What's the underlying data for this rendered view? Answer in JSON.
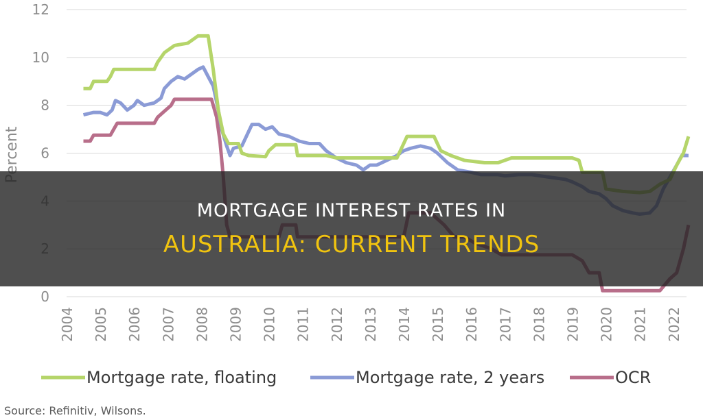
{
  "chart_data": {
    "type": "line",
    "ylabel": "Percent",
    "ylim": [
      0,
      12
    ],
    "yticks": [
      "0",
      "2",
      "4",
      "6",
      "8",
      "10",
      "12"
    ],
    "xlim": [
      2004,
      2022.6
    ],
    "xticks": [
      "2004",
      "2005",
      "2006",
      "2007",
      "2008",
      "2009",
      "2010",
      "2011",
      "2012",
      "2013",
      "2014",
      "2015",
      "2016",
      "2017",
      "2018",
      "2019",
      "2020",
      "2021",
      "2022"
    ],
    "grid": "horizontal",
    "legend_position": "bottom",
    "series": [
      {
        "name": "Mortgage rate, floating",
        "color": "#b5d56a",
        "points": [
          [
            2004.5,
            8.7
          ],
          [
            2004.7,
            8.7
          ],
          [
            2004.8,
            9.0
          ],
          [
            2005.2,
            9.0
          ],
          [
            2005.3,
            9.2
          ],
          [
            2005.4,
            9.5
          ],
          [
            2006.6,
            9.5
          ],
          [
            2006.7,
            9.8
          ],
          [
            2006.9,
            10.2
          ],
          [
            2007.2,
            10.5
          ],
          [
            2007.6,
            10.6
          ],
          [
            2007.7,
            10.7
          ],
          [
            2007.9,
            10.9
          ],
          [
            2008.2,
            10.9
          ],
          [
            2008.35,
            9.5
          ],
          [
            2008.5,
            7.8
          ],
          [
            2008.65,
            6.8
          ],
          [
            2008.8,
            6.4
          ],
          [
            2009.1,
            6.4
          ],
          [
            2009.2,
            6.0
          ],
          [
            2009.4,
            5.9
          ],
          [
            2009.9,
            5.85
          ],
          [
            2010.0,
            6.1
          ],
          [
            2010.2,
            6.35
          ],
          [
            2010.8,
            6.35
          ],
          [
            2010.85,
            5.9
          ],
          [
            2011.7,
            5.9
          ],
          [
            2012.0,
            5.8
          ],
          [
            2013.8,
            5.8
          ],
          [
            2014.1,
            6.7
          ],
          [
            2014.9,
            6.7
          ],
          [
            2015.1,
            6.1
          ],
          [
            2015.4,
            5.9
          ],
          [
            2015.8,
            5.7
          ],
          [
            2016.4,
            5.6
          ],
          [
            2016.8,
            5.6
          ],
          [
            2017.2,
            5.8
          ],
          [
            2018.8,
            5.8
          ],
          [
            2019.0,
            5.8
          ],
          [
            2019.2,
            5.7
          ],
          [
            2019.3,
            5.2
          ],
          [
            2019.9,
            5.2
          ],
          [
            2020.0,
            4.5
          ],
          [
            2020.5,
            4.4
          ],
          [
            2021.0,
            4.35
          ],
          [
            2021.3,
            4.4
          ],
          [
            2021.6,
            4.7
          ],
          [
            2021.9,
            4.9
          ],
          [
            2022.1,
            5.5
          ],
          [
            2022.3,
            6.0
          ],
          [
            2022.45,
            6.7
          ]
        ]
      },
      {
        "name": "Mortgage rate, 2 years",
        "color": "#8b9bd6",
        "points": [
          [
            2004.5,
            7.6
          ],
          [
            2004.8,
            7.7
          ],
          [
            2005.0,
            7.7
          ],
          [
            2005.2,
            7.6
          ],
          [
            2005.35,
            7.8
          ],
          [
            2005.45,
            8.2
          ],
          [
            2005.6,
            8.1
          ],
          [
            2005.8,
            7.8
          ],
          [
            2006.0,
            8.0
          ],
          [
            2006.1,
            8.2
          ],
          [
            2006.3,
            8.0
          ],
          [
            2006.6,
            8.1
          ],
          [
            2006.8,
            8.3
          ],
          [
            2006.9,
            8.7
          ],
          [
            2007.1,
            9.0
          ],
          [
            2007.3,
            9.2
          ],
          [
            2007.5,
            9.1
          ],
          [
            2007.7,
            9.3
          ],
          [
            2007.9,
            9.5
          ],
          [
            2008.05,
            9.6
          ],
          [
            2008.2,
            9.2
          ],
          [
            2008.35,
            8.8
          ],
          [
            2008.5,
            7.8
          ],
          [
            2008.6,
            7.0
          ],
          [
            2008.75,
            6.3
          ],
          [
            2008.85,
            5.9
          ],
          [
            2008.95,
            6.2
          ],
          [
            2009.2,
            6.3
          ],
          [
            2009.4,
            6.9
          ],
          [
            2009.5,
            7.2
          ],
          [
            2009.7,
            7.2
          ],
          [
            2009.9,
            7.0
          ],
          [
            2010.1,
            7.1
          ],
          [
            2010.3,
            6.8
          ],
          [
            2010.6,
            6.7
          ],
          [
            2010.9,
            6.5
          ],
          [
            2011.2,
            6.4
          ],
          [
            2011.5,
            6.4
          ],
          [
            2011.7,
            6.1
          ],
          [
            2012.0,
            5.8
          ],
          [
            2012.3,
            5.6
          ],
          [
            2012.6,
            5.5
          ],
          [
            2012.8,
            5.3
          ],
          [
            2013.0,
            5.5
          ],
          [
            2013.2,
            5.5
          ],
          [
            2013.5,
            5.7
          ],
          [
            2013.8,
            5.9
          ],
          [
            2014.0,
            6.1
          ],
          [
            2014.2,
            6.2
          ],
          [
            2014.5,
            6.3
          ],
          [
            2014.8,
            6.2
          ],
          [
            2015.0,
            6.0
          ],
          [
            2015.3,
            5.6
          ],
          [
            2015.6,
            5.3
          ],
          [
            2016.0,
            5.2
          ],
          [
            2016.3,
            5.1
          ],
          [
            2016.8,
            5.1
          ],
          [
            2017.0,
            5.05
          ],
          [
            2017.4,
            5.1
          ],
          [
            2017.8,
            5.1
          ],
          [
            2018.3,
            5.0
          ],
          [
            2018.8,
            4.9
          ],
          [
            2019.0,
            4.8
          ],
          [
            2019.3,
            4.6
          ],
          [
            2019.5,
            4.4
          ],
          [
            2019.8,
            4.3
          ],
          [
            2020.0,
            4.1
          ],
          [
            2020.2,
            3.8
          ],
          [
            2020.5,
            3.6
          ],
          [
            2020.8,
            3.5
          ],
          [
            2021.0,
            3.45
          ],
          [
            2021.3,
            3.5
          ],
          [
            2021.5,
            3.8
          ],
          [
            2021.7,
            4.5
          ],
          [
            2021.9,
            5.0
          ],
          [
            2022.1,
            5.5
          ],
          [
            2022.25,
            5.9
          ],
          [
            2022.45,
            5.9
          ]
        ]
      },
      {
        "name": "OCR",
        "color": "#b86e8a",
        "points": [
          [
            2004.5,
            6.5
          ],
          [
            2004.7,
            6.5
          ],
          [
            2004.8,
            6.75
          ],
          [
            2005.3,
            6.75
          ],
          [
            2005.4,
            7.0
          ],
          [
            2005.5,
            7.25
          ],
          [
            2006.6,
            7.25
          ],
          [
            2006.7,
            7.5
          ],
          [
            2006.9,
            7.75
          ],
          [
            2007.1,
            8.0
          ],
          [
            2007.2,
            8.25
          ],
          [
            2008.3,
            8.25
          ],
          [
            2008.45,
            7.5
          ],
          [
            2008.55,
            6.5
          ],
          [
            2008.65,
            5.0
          ],
          [
            2008.75,
            3.0
          ],
          [
            2008.85,
            2.5
          ],
          [
            2009.0,
            2.5
          ],
          [
            2010.3,
            2.5
          ],
          [
            2010.4,
            3.0
          ],
          [
            2010.8,
            3.0
          ],
          [
            2010.85,
            2.5
          ],
          [
            2014.0,
            2.5
          ],
          [
            2014.15,
            3.5
          ],
          [
            2014.8,
            3.5
          ],
          [
            2015.2,
            3.0
          ],
          [
            2015.5,
            2.5
          ],
          [
            2015.8,
            2.5
          ],
          [
            2016.1,
            2.25
          ],
          [
            2016.6,
            2.0
          ],
          [
            2016.9,
            1.75
          ],
          [
            2019.0,
            1.75
          ],
          [
            2019.3,
            1.5
          ],
          [
            2019.5,
            1.0
          ],
          [
            2019.8,
            1.0
          ],
          [
            2019.9,
            0.25
          ],
          [
            2021.6,
            0.25
          ],
          [
            2021.75,
            0.5
          ],
          [
            2021.9,
            0.75
          ],
          [
            2022.1,
            1.0
          ],
          [
            2022.3,
            2.0
          ],
          [
            2022.45,
            3.0
          ]
        ]
      }
    ]
  },
  "source": "Source: Refinitiv, Wilsons.",
  "banner": {
    "line1": "Mortgage interest rates in",
    "line2": "Australia: current trends"
  }
}
